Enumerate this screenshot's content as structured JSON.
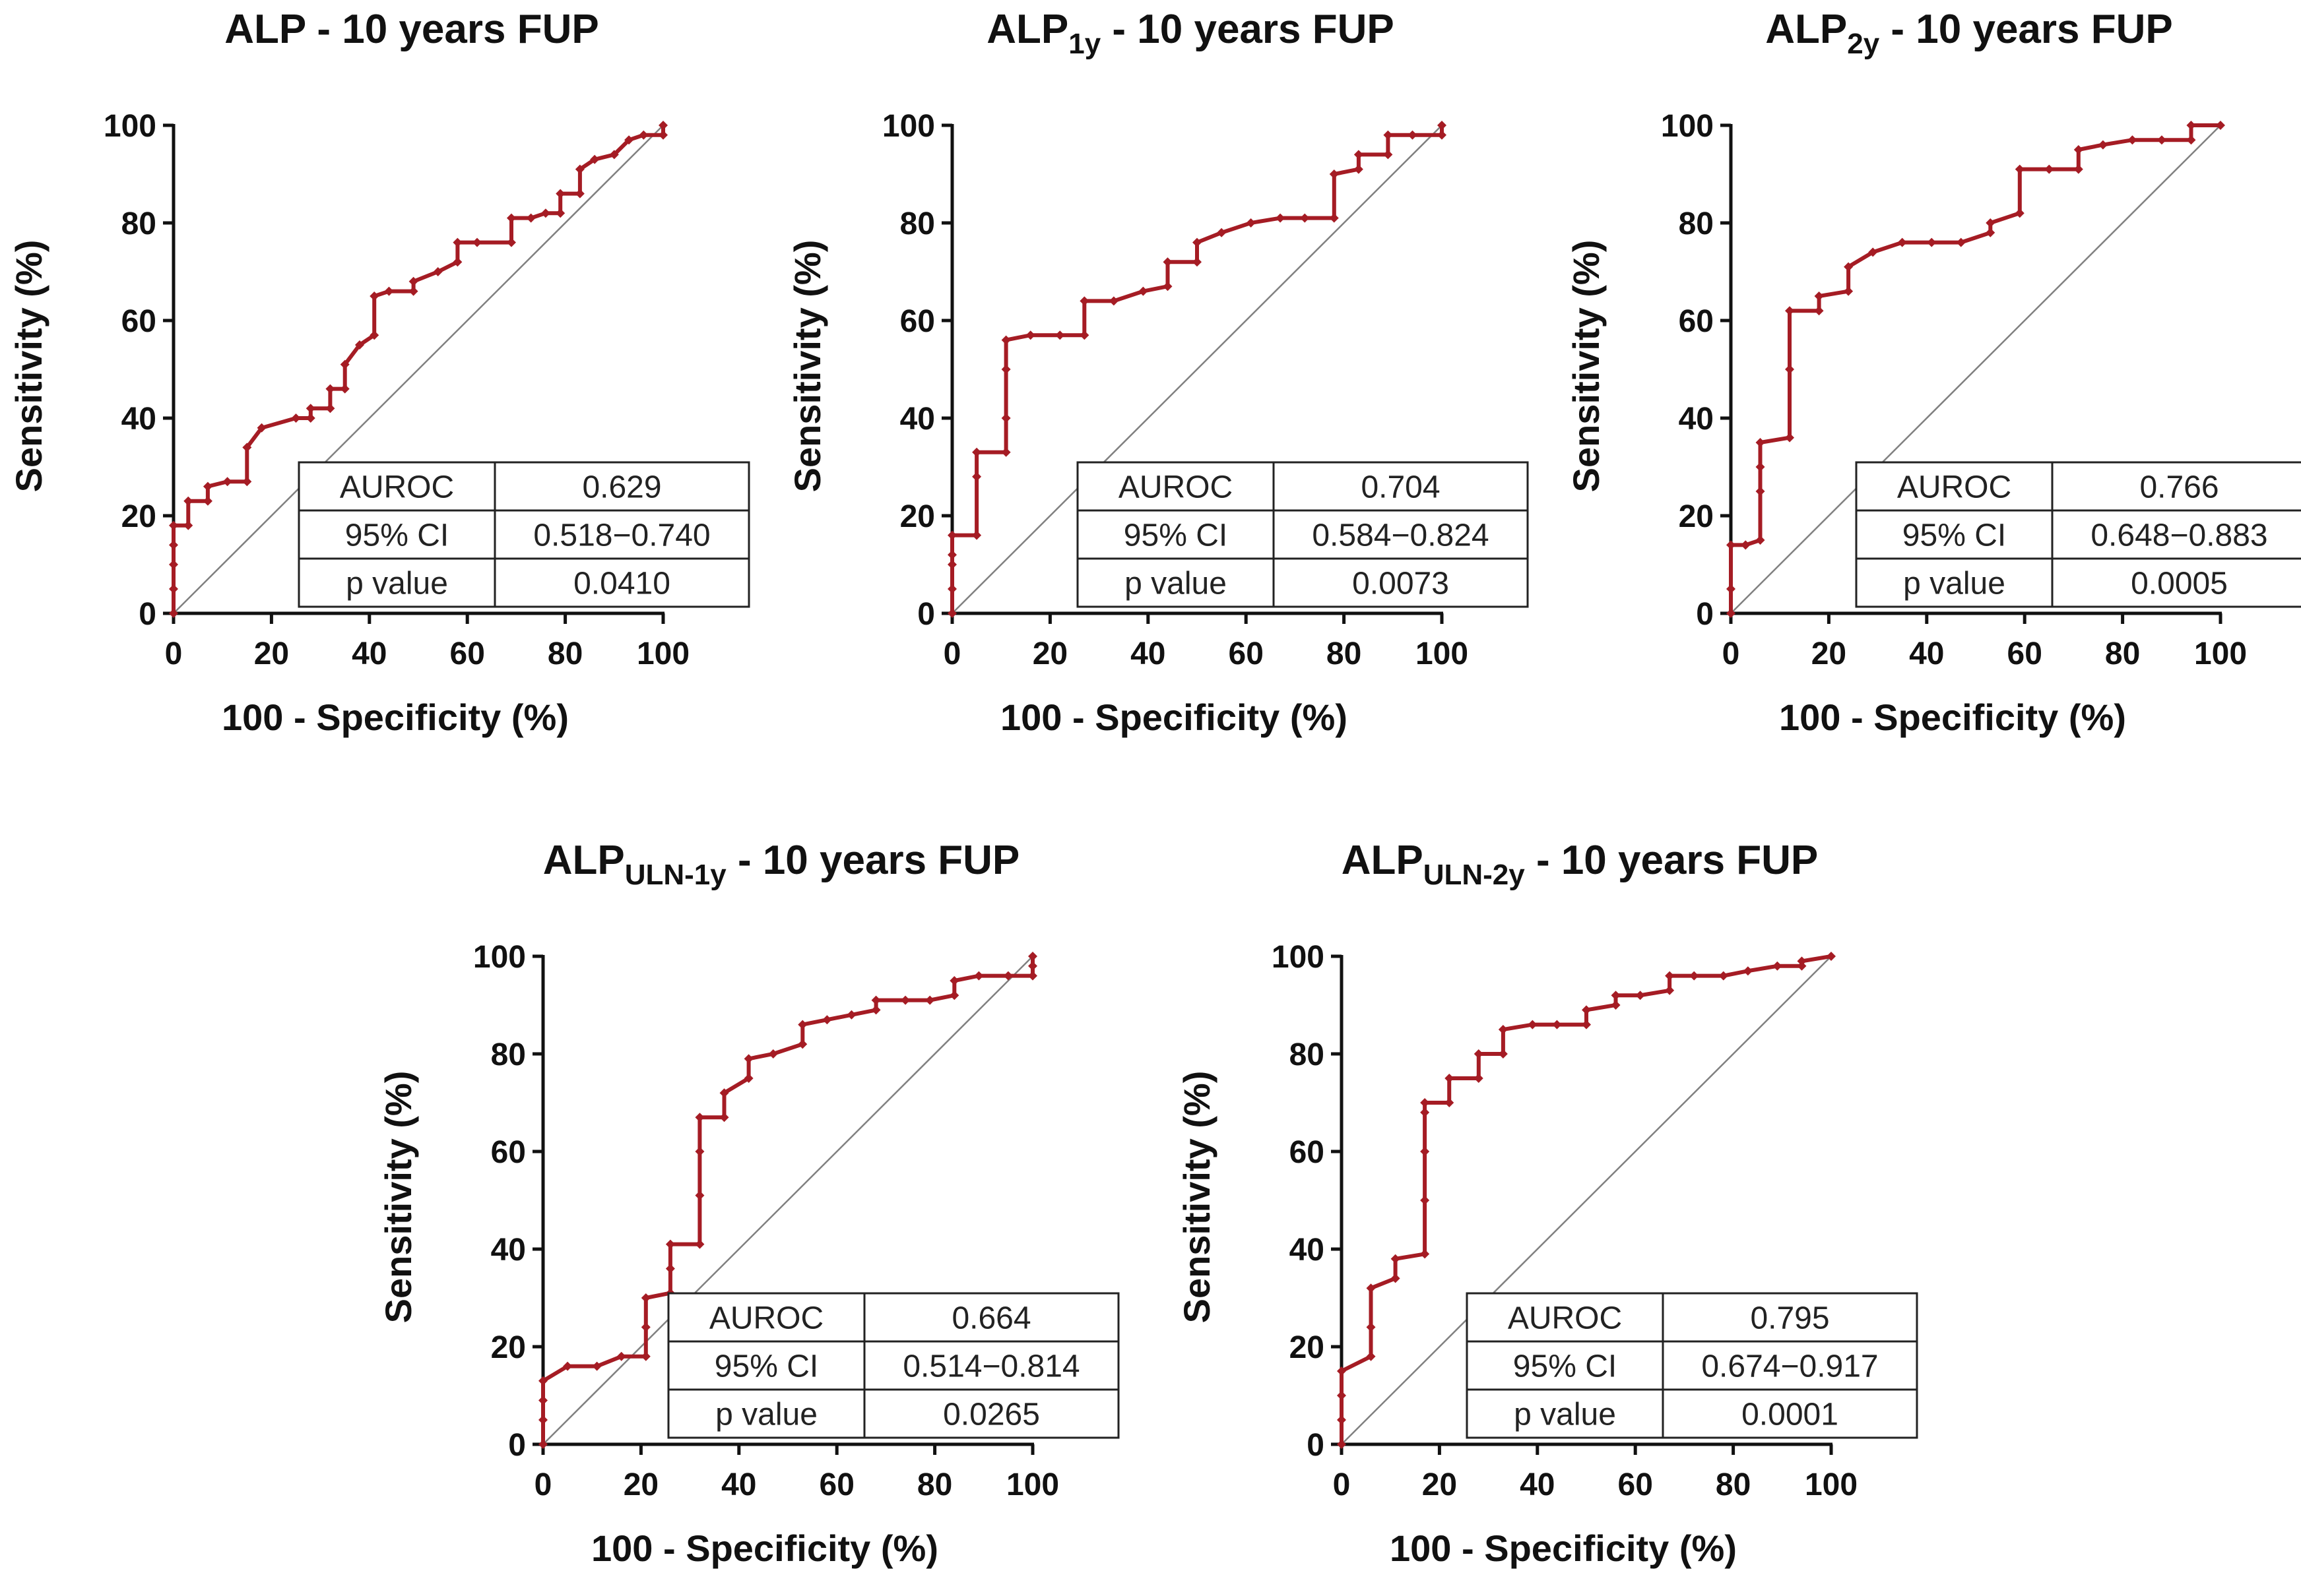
{
  "colors": {
    "roc": "#A51C24",
    "diagonal": "#808080",
    "axis": "#111111"
  },
  "axis_labels": {
    "x": "100 - Specificity (%)",
    "y": "Sensitivity (%)"
  },
  "chart_data": [
    {
      "type": "line",
      "title": "ALP - 10 years FUP",
      "title_parts": [
        {
          "text": "ALP - 10 years FUP",
          "sub": false
        }
      ],
      "xlabel": "100 - Specificity (%)",
      "ylabel": "Sensitivity (%)",
      "xlim": [
        0,
        100
      ],
      "ylim": [
        0,
        100
      ],
      "xticks": [
        "0",
        "20",
        "40",
        "60",
        "80",
        "100"
      ],
      "yticks": [
        "0",
        "20",
        "40",
        "60",
        "80",
        "100"
      ],
      "x": [
        0,
        0,
        0,
        0,
        0,
        3,
        3,
        7,
        7,
        11,
        15,
        15,
        18,
        25,
        28,
        28,
        32,
        32,
        35,
        35,
        38,
        41,
        41,
        44,
        49,
        49,
        54,
        58,
        58,
        62,
        69,
        69,
        73,
        76,
        79,
        79,
        83,
        83,
        86,
        90,
        93,
        96,
        100,
        100
      ],
      "y": [
        0,
        5,
        10,
        14,
        18,
        18,
        23,
        23,
        26,
        27,
        27,
        34,
        38,
        40,
        40,
        42,
        42,
        46,
        46,
        51,
        55,
        57,
        65,
        66,
        66,
        68,
        70,
        72,
        76,
        76,
        76,
        81,
        81,
        82,
        82,
        86,
        86,
        91,
        93,
        94,
        97,
        98,
        98,
        100
      ],
      "table": [
        [
          "AUROC",
          "0.629"
        ],
        [
          "95% CI",
          "0.518−0.740"
        ],
        [
          "p value",
          "0.0410"
        ]
      ]
    },
    {
      "type": "line",
      "title": "ALP1y - 10 years FUP",
      "title_parts": [
        {
          "text": "ALP",
          "sub": false
        },
        {
          "text": "1y",
          "sub": true
        },
        {
          "text": " - 10 years FUP",
          "sub": false
        }
      ],
      "xlabel": "100 - Specificity (%)",
      "ylabel": "Sensitivity (%)",
      "xlim": [
        0,
        100
      ],
      "ylim": [
        0,
        100
      ],
      "xticks": [
        "0",
        "20",
        "40",
        "60",
        "80",
        "100"
      ],
      "yticks": [
        "0",
        "20",
        "40",
        "60",
        "80",
        "100"
      ],
      "x": [
        0,
        0,
        0,
        0,
        0,
        5,
        5,
        5,
        11,
        11,
        11,
        11,
        16,
        22,
        27,
        27,
        33,
        39,
        44,
        44,
        50,
        50,
        55,
        61,
        67,
        72,
        78,
        78,
        83,
        83,
        89,
        89,
        94,
        100,
        100
      ],
      "y": [
        0,
        5,
        10,
        12,
        16,
        16,
        28,
        33,
        33,
        40,
        50,
        56,
        57,
        57,
        57,
        64,
        64,
        66,
        67,
        72,
        72,
        76,
        78,
        80,
        81,
        81,
        81,
        90,
        91,
        94,
        94,
        98,
        98,
        98,
        100
      ],
      "table": [
        [
          "AUROC",
          "0.704"
        ],
        [
          "95% CI",
          "0.584−0.824"
        ],
        [
          "p value",
          "0.0073"
        ]
      ]
    },
    {
      "type": "line",
      "title": "ALP2y - 10 years FUP",
      "title_parts": [
        {
          "text": "ALP",
          "sub": false
        },
        {
          "text": "2y",
          "sub": true
        },
        {
          "text": " - 10 years FUP",
          "sub": false
        }
      ],
      "xlabel": "100 - Specificity (%)",
      "ylabel": "Sensitivity (%)",
      "xlim": [
        0,
        100
      ],
      "ylim": [
        0,
        100
      ],
      "xticks": [
        "0",
        "20",
        "40",
        "60",
        "80",
        "100"
      ],
      "yticks": [
        "0",
        "20",
        "40",
        "60",
        "80",
        "100"
      ],
      "x": [
        0,
        0,
        0,
        3,
        3,
        6,
        6,
        6,
        6,
        12,
        12,
        12,
        18,
        18,
        24,
        24,
        29,
        35,
        41,
        47,
        53,
        53,
        59,
        59,
        65,
        71,
        71,
        76,
        82,
        88,
        94,
        94,
        100
      ],
      "y": [
        0,
        5,
        14,
        14,
        14,
        15,
        25,
        30,
        35,
        36,
        50,
        62,
        62,
        65,
        66,
        71,
        74,
        76,
        76,
        76,
        78,
        80,
        82,
        91,
        91,
        91,
        95,
        96,
        97,
        97,
        97,
        100,
        100
      ],
      "table": [
        [
          "AUROC",
          "0.766"
        ],
        [
          "95% CI",
          "0.648−0.883"
        ],
        [
          "p value",
          "0.0005"
        ]
      ]
    },
    {
      "type": "line",
      "title": "ALPULN-1y - 10 years FUP",
      "title_parts": [
        {
          "text": "ALP",
          "sub": false
        },
        {
          "text": "ULN-1y",
          "sub": true
        },
        {
          "text": " - 10 years FUP",
          "sub": false
        }
      ],
      "xlabel": "100 - Specificity (%)",
      "ylabel": "Sensitivity (%)",
      "xlim": [
        0,
        100
      ],
      "ylim": [
        0,
        100
      ],
      "xticks": [
        "0",
        "20",
        "40",
        "60",
        "80",
        "100"
      ],
      "yticks": [
        "0",
        "20",
        "40",
        "60",
        "80",
        "100"
      ],
      "x": [
        0,
        0,
        0,
        0,
        5,
        11,
        16,
        21,
        21,
        21,
        26,
        26,
        26,
        32,
        32,
        32,
        32,
        37,
        37,
        42,
        42,
        47,
        53,
        53,
        58,
        63,
        68,
        68,
        74,
        79,
        84,
        84,
        89,
        95,
        100,
        100,
        100
      ],
      "y": [
        0,
        5,
        9,
        13,
        16,
        16,
        18,
        18,
        24,
        30,
        31,
        36,
        41,
        41,
        51,
        60,
        67,
        67,
        72,
        75,
        79,
        80,
        82,
        86,
        87,
        88,
        89,
        91,
        91,
        91,
        92,
        95,
        96,
        96,
        96,
        98,
        100
      ],
      "table": [
        [
          "AUROC",
          "0.664"
        ],
        [
          "95% CI",
          "0.514−0.814"
        ],
        [
          "p value",
          "0.0265"
        ]
      ]
    },
    {
      "type": "line",
      "title": "ALPULN-2y - 10 years FUP",
      "title_parts": [
        {
          "text": "ALP",
          "sub": false
        },
        {
          "text": "ULN-2y",
          "sub": true
        },
        {
          "text": " - 10 years FUP",
          "sub": false
        }
      ],
      "xlabel": "100 - Specificity (%)",
      "ylabel": "Sensitivity (%)",
      "xlim": [
        0,
        100
      ],
      "ylim": [
        0,
        100
      ],
      "xticks": [
        "0",
        "20",
        "40",
        "60",
        "80",
        "100"
      ],
      "yticks": [
        "0",
        "20",
        "40",
        "60",
        "80",
        "100"
      ],
      "x": [
        0,
        0,
        0,
        0,
        6,
        6,
        6,
        11,
        11,
        17,
        17,
        17,
        17,
        17,
        22,
        22,
        28,
        28,
        33,
        33,
        39,
        44,
        50,
        50,
        56,
        56,
        61,
        67,
        67,
        72,
        78,
        83,
        89,
        94,
        94,
        100
      ],
      "y": [
        0,
        5,
        10,
        15,
        18,
        24,
        32,
        34,
        38,
        39,
        50,
        60,
        68,
        70,
        70,
        75,
        75,
        80,
        80,
        85,
        86,
        86,
        86,
        89,
        90,
        92,
        92,
        93,
        96,
        96,
        96,
        97,
        98,
        98,
        99,
        100
      ],
      "table": [
        [
          "AUROC",
          "0.795"
        ],
        [
          "95% CI",
          "0.674−0.917"
        ],
        [
          "p value",
          "0.0001"
        ]
      ]
    }
  ]
}
